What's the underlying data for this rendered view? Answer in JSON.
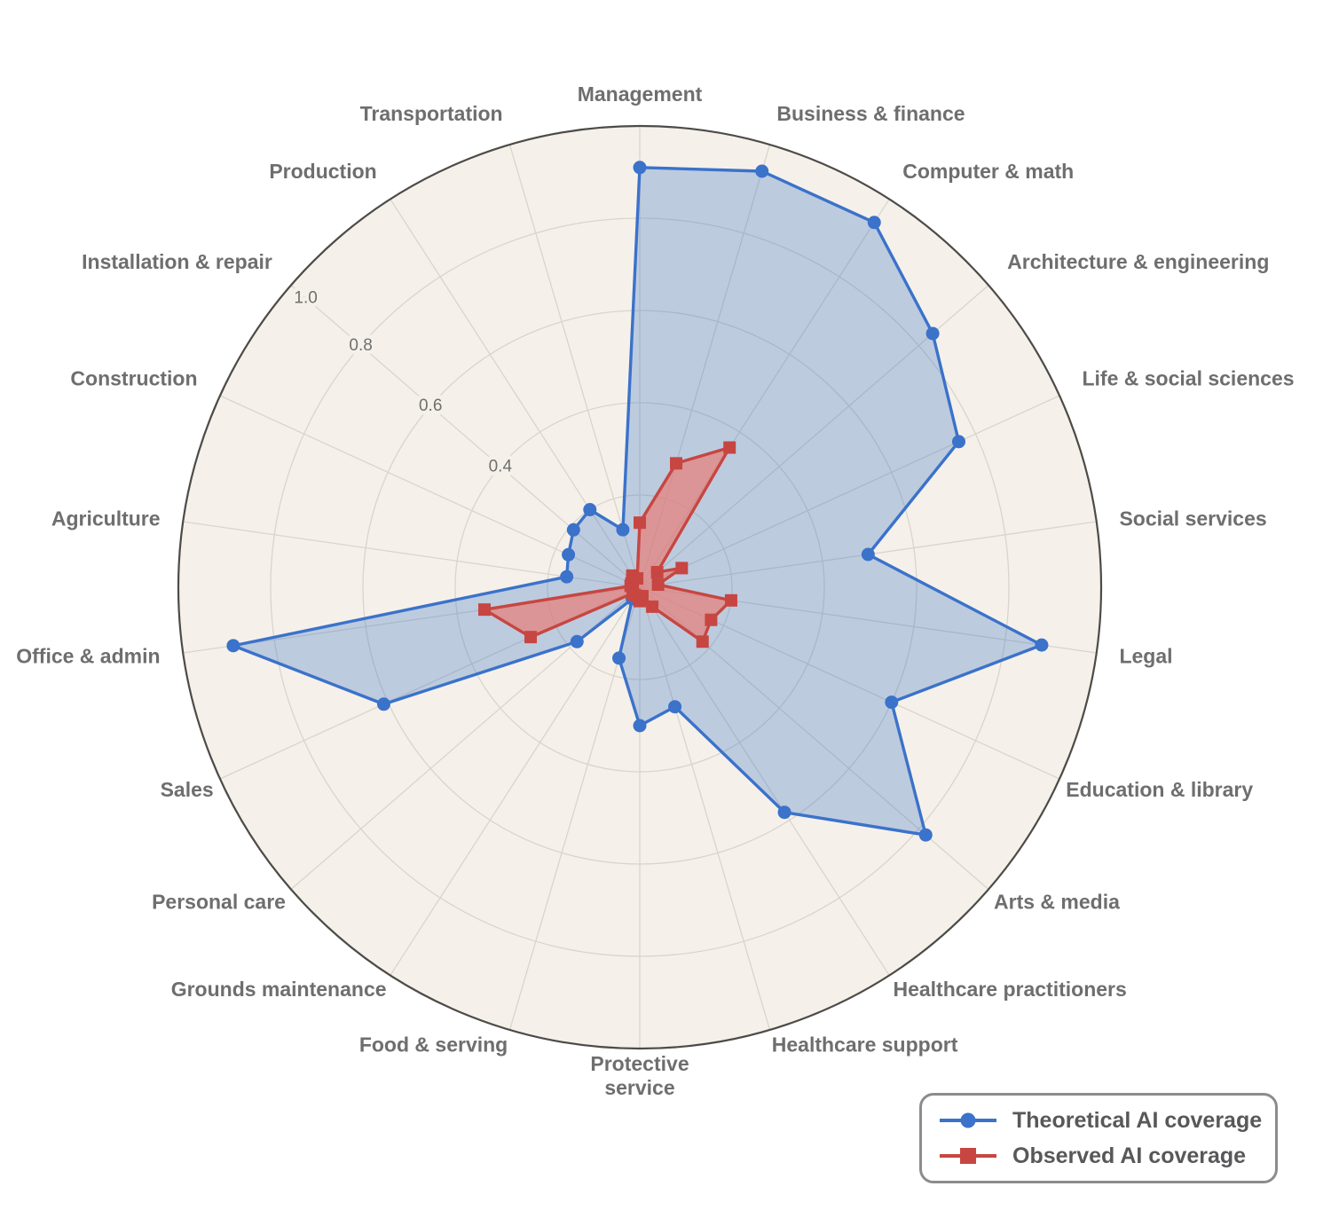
{
  "chart_data": {
    "type": "radar",
    "title": "",
    "categories": [
      "Management",
      "Business & finance",
      "Computer & math",
      "Architecture & engineering",
      "Life & social sciences",
      "Social services",
      "Legal",
      "Education & library",
      "Arts & media",
      "Healthcare practitioners",
      "Healthcare support",
      "Protective\nservice",
      "Food & serving",
      "Grounds maintenance",
      "Personal care",
      "Sales",
      "Office & admin",
      "Agriculture",
      "Construction",
      "Installation & repair",
      "Production",
      "Transportation"
    ],
    "radial_axis": {
      "min": 0,
      "max": 1.0,
      "gridline_values": [
        0.2,
        0.4,
        0.6,
        0.8,
        1.0
      ],
      "tick_values": [
        0.4,
        0.6,
        0.8,
        1.0
      ],
      "tick_labels": [
        "0.4",
        "0.6",
        "0.8",
        "1.0"
      ]
    },
    "series": [
      {
        "name": "Theoretical AI coverage",
        "marker": "circle",
        "color": "#3b72ca",
        "fill": "rgba(61,116,200,0.30)",
        "values": [
          0.91,
          0.94,
          0.94,
          0.84,
          0.76,
          0.5,
          0.88,
          0.6,
          0.82,
          0.58,
          0.27,
          0.3,
          0.16,
          0.03,
          0.18,
          0.61,
          0.89,
          0.16,
          0.17,
          0.19,
          0.2,
          0.13
        ]
      },
      {
        "name": "Observed AI coverage",
        "marker": "square",
        "color": "#c74641",
        "fill": "rgba(232,126,118,0.70)",
        "values": [
          0.14,
          0.28,
          0.36,
          0.05,
          0.1,
          0.04,
          0.2,
          0.17,
          0.18,
          0.05,
          0.02,
          0.03,
          0.02,
          0.02,
          0.02,
          0.26,
          0.34,
          0.02,
          0.02,
          0.02,
          0.03,
          0.02
        ]
      }
    ],
    "legend": {
      "position": "bottom-right"
    },
    "grid": "on"
  }
}
